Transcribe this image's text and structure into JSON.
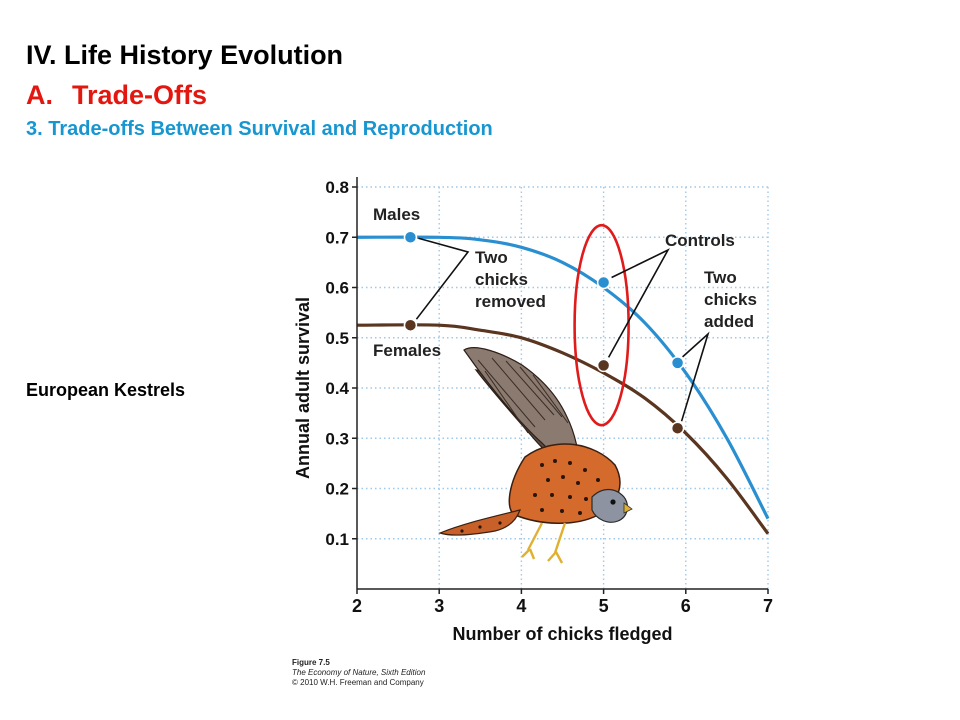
{
  "slide": {
    "heading": "IV. Life History Evolution",
    "section_letter": "A.",
    "section_title": "Trade-Offs",
    "subsection": "3. Trade-offs Between Survival and Reproduction",
    "species_label": "European Kestrels",
    "caption": {
      "figure": "Figure 7.5",
      "book": "The Economy of Nature, Sixth Edition",
      "copyright": "© 2010 W.H. Freeman and Company"
    }
  },
  "colors": {
    "males": "#2a8fd0",
    "females": "#5a3520",
    "highlight": "#e01b1b",
    "grid": "#9ec9ea",
    "heading_red": "#e3170f",
    "heading_blue": "#1796d0"
  },
  "chart_data": {
    "type": "line",
    "xlabel": "Number of chicks fledged",
    "ylabel": "Annual adult survival",
    "xlim": [
      2,
      7
    ],
    "ylim": [
      0,
      0.8
    ],
    "x_ticks": [
      "2",
      "3",
      "4",
      "5",
      "6",
      "7"
    ],
    "y_ticks": [
      "0.1",
      "0.2",
      "0.3",
      "0.4",
      "0.5",
      "0.6",
      "0.7",
      "0.8"
    ],
    "grid": true,
    "series": [
      {
        "name": "Males",
        "curve": [
          [
            2,
            0.7
          ],
          [
            3,
            0.7
          ],
          [
            3.5,
            0.695
          ],
          [
            4,
            0.68
          ],
          [
            4.5,
            0.65
          ],
          [
            5,
            0.6
          ],
          [
            5.5,
            0.53
          ],
          [
            6,
            0.43
          ],
          [
            6.5,
            0.3
          ],
          [
            7,
            0.14
          ]
        ],
        "points": [
          {
            "x": 2.65,
            "y": 0.7,
            "group": "Two chicks removed"
          },
          {
            "x": 5,
            "y": 0.61,
            "group": "Controls"
          },
          {
            "x": 5.9,
            "y": 0.45,
            "group": "Two chicks added"
          }
        ]
      },
      {
        "name": "Females",
        "curve": [
          [
            2,
            0.525
          ],
          [
            3,
            0.525
          ],
          [
            3.5,
            0.515
          ],
          [
            4,
            0.5
          ],
          [
            4.5,
            0.47
          ],
          [
            5,
            0.43
          ],
          [
            5.5,
            0.38
          ],
          [
            6,
            0.31
          ],
          [
            6.5,
            0.22
          ],
          [
            7,
            0.11
          ]
        ],
        "points": [
          {
            "x": 2.65,
            "y": 0.525,
            "group": "Two chicks removed"
          },
          {
            "x": 5,
            "y": 0.445,
            "group": "Controls"
          },
          {
            "x": 5.9,
            "y": 0.32,
            "group": "Two chicks added"
          }
        ]
      }
    ],
    "annotations": {
      "males": "Males",
      "females": "Females",
      "removed": [
        "Two",
        "chicks",
        "removed"
      ],
      "controls": "Controls",
      "added": [
        "Two",
        "chicks",
        "added"
      ]
    }
  }
}
